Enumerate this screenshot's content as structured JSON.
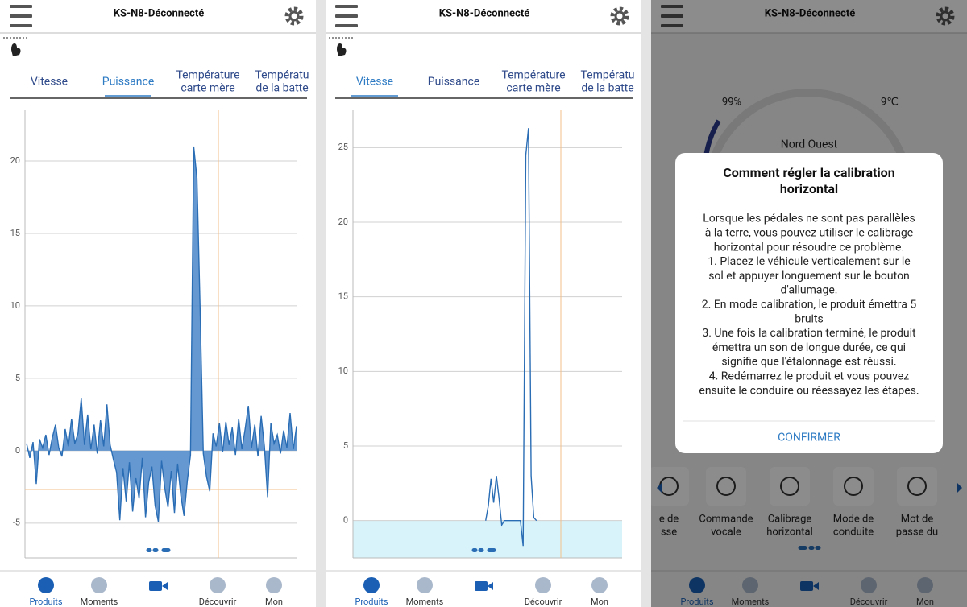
{
  "screens": [
    {
      "header": {
        "title": "KS-N8-Déconnecté"
      },
      "tabs": [
        [
          "Vitesse"
        ],
        [
          "Puissance"
        ],
        [
          "Température",
          "carte mère"
        ],
        [
          "Températu",
          "de la batte"
        ]
      ],
      "active_tab": 1,
      "chart_data": {
        "type": "line",
        "color": "#2a6db5",
        "fill": "#4a86c8",
        "values": [
          0.5,
          -0.5,
          0.6,
          -2.3,
          0.8,
          0.2,
          1.1,
          -0.3,
          0.9,
          1.8,
          0.2,
          -0.4,
          1.5,
          0.3,
          2.2,
          0.5,
          1.2,
          3.6,
          0.4,
          2.5,
          0.1,
          1.8,
          -0.2,
          2.1,
          0.3,
          3.2,
          0.4,
          -0.6,
          -1.5,
          -4.8,
          -1.2,
          -3.5,
          -0.8,
          -4.2,
          -1.9,
          -3.3,
          -0.5,
          -4.6,
          -2.2,
          -1.1,
          -3.8,
          -4.9,
          -0.7,
          -2.6,
          -3.9,
          -1.4,
          -4.3,
          -0.9,
          -3.1,
          -4.5,
          -2.1,
          -0.3,
          21.0,
          18.8,
          9.6,
          -0.2,
          -1.8,
          -2.8,
          1.2,
          0.3,
          1.9,
          -0.1,
          2.0,
          0.4,
          1.6,
          -0.3,
          2.2,
          0.1,
          1.5,
          3.1,
          0.2,
          1.8,
          -0.4,
          2.4,
          0.3,
          -3.2,
          1.9,
          0.5,
          1.1,
          -0.2,
          1.4,
          0.2,
          2.6,
          0.1,
          1.7
        ],
        "ylim": [
          -7.4,
          23.5
        ],
        "yticks": [
          -5,
          0,
          5,
          10,
          15,
          20
        ],
        "grid": true
      },
      "nav": [
        "Produits",
        "Moments",
        null,
        "Découvrir",
        "Mon"
      ]
    },
    {
      "header": {
        "title": "KS-N8-Déconnecté"
      },
      "tabs": [
        [
          "Vitesse"
        ],
        [
          "Puissance"
        ],
        [
          "Température",
          "carte mère"
        ],
        [
          "Températu",
          "de la batte"
        ]
      ],
      "active_tab": 0,
      "chart_data": {
        "type": "line",
        "color": "#2a6db5",
        "negative_band": "#d8f3fa",
        "values": [
          null,
          null,
          null,
          null,
          null,
          null,
          null,
          null,
          null,
          null,
          null,
          null,
          null,
          null,
          null,
          null,
          null,
          null,
          null,
          null,
          null,
          null,
          null,
          null,
          null,
          null,
          null,
          null,
          null,
          null,
          null,
          null,
          null,
          null,
          null,
          null,
          null,
          null,
          null,
          null,
          null,
          null,
          null,
          null,
          null,
          null,
          null,
          null,
          null,
          0,
          1.0,
          2.8,
          1.2,
          3.0,
          1.5,
          -0.3,
          0,
          0,
          0,
          0,
          0,
          0,
          0,
          -1.7,
          24.5,
          26.3,
          3.0,
          0.2,
          0,
          null,
          null,
          null,
          null,
          null,
          null,
          null,
          null,
          null,
          null,
          null,
          null,
          null,
          null,
          null,
          null,
          null,
          null,
          null,
          null,
          null,
          null,
          null,
          null,
          null,
          null,
          null,
          null,
          null,
          null,
          null,
          null
        ],
        "ylim": [
          -2.5,
          27.5
        ],
        "yticks": [
          0,
          5,
          10,
          15,
          20,
          25
        ],
        "grid": true
      },
      "nav": [
        "Produits",
        "Moments",
        null,
        "Découvrir",
        "Mon"
      ]
    },
    {
      "header": {
        "title": "KS-N8-Déconnecté"
      },
      "status": {
        "battery": "99%",
        "temperature": "9℃",
        "direction": "Nord Ouest"
      },
      "dialog": {
        "title": [
          "Comment régler la calibration",
          "horizontal"
        ],
        "body": [
          "Lorsque les pédales ne sont pas parallèles",
          "à la terre, vous pouvez utiliser le calibrage",
          "horizontal pour résoudre ce problème.",
          "1. Placez le véhicule verticalement sur le",
          "sol et appuyer longuement sur le bouton",
          "d'allumage.",
          "2. En mode calibration, le produit émettra 5",
          "bruits",
          "3. Une fois la calibration terminé, le produit",
          "émettra un son de longue durée, ce qui",
          "signifie que l'étalonnage est réussi.",
          "4. Redémarrez le produit et vous pouvez",
          "ensuite le conduire ou réessayez les étapes."
        ],
        "button": "CONFIRMER"
      },
      "features": [
        [
          "e de",
          "sse"
        ],
        [
          "Commande",
          "vocale"
        ],
        [
          "Calibrage",
          "horizontal"
        ],
        [
          "Mode de",
          "conduite"
        ],
        [
          "Mot de",
          "passe du"
        ]
      ],
      "nav": [
        "Produits",
        "Moments",
        null,
        "Découvrir",
        "Mon"
      ]
    }
  ]
}
